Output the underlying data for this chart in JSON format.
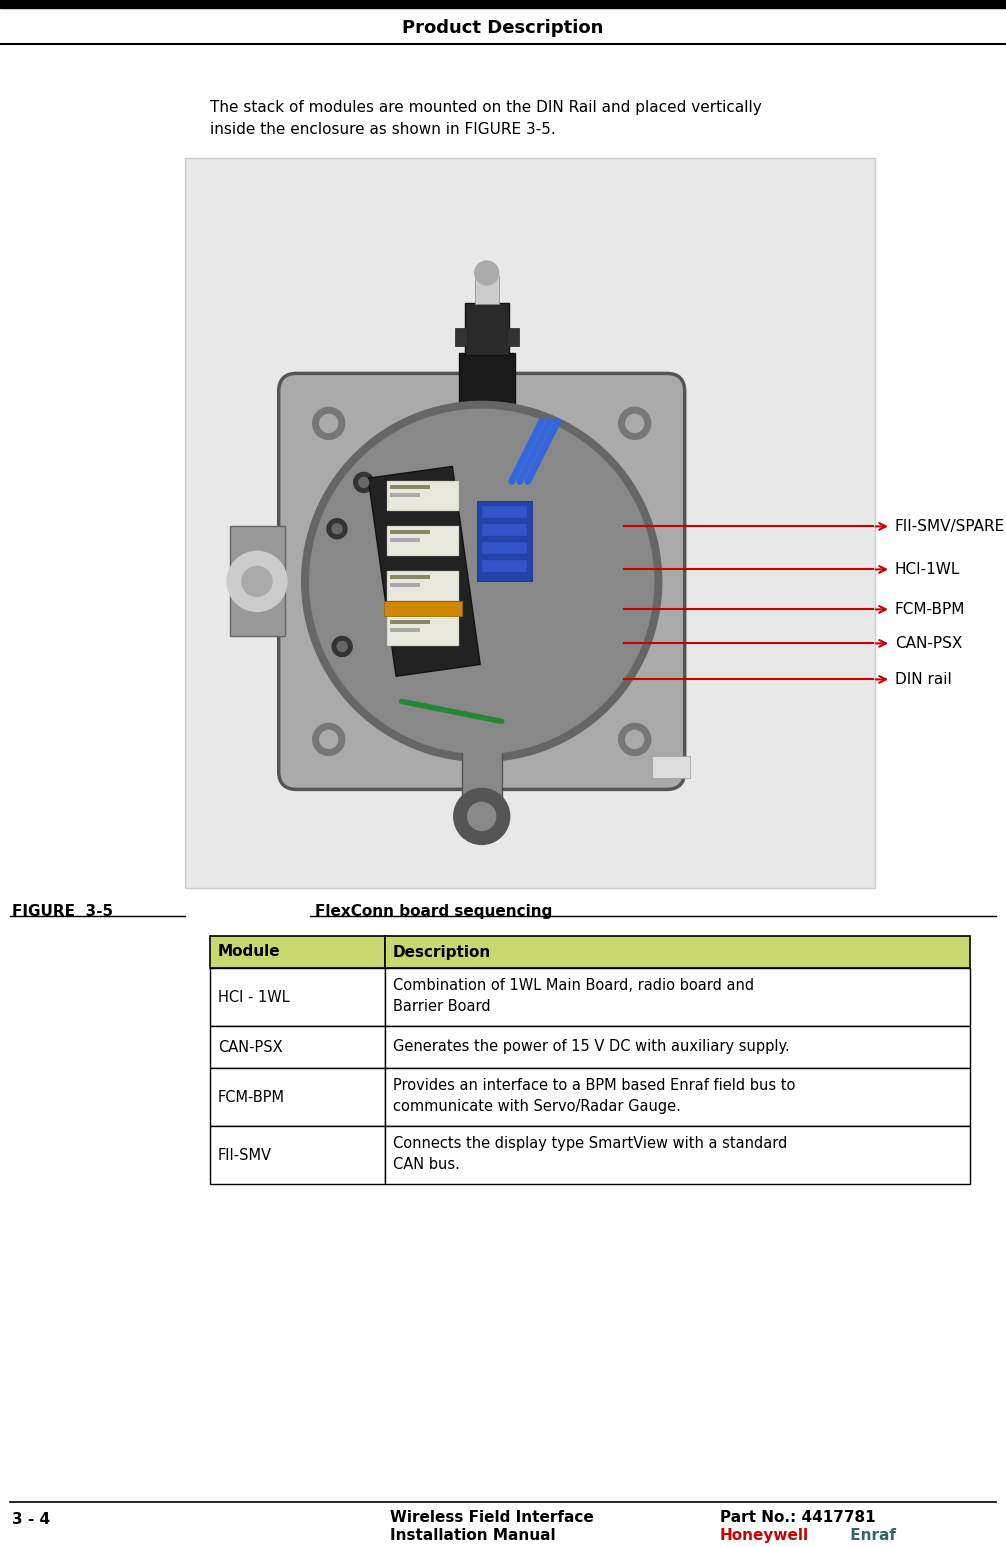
{
  "page_title": "Product Description",
  "bg_color": "#ffffff",
  "header_title": "Product Description",
  "intro_text_line1": "The stack of modules are mounted on the DIN Rail and placed vertically",
  "intro_text_line2": "inside the enclosure as shown in FIGURE 3-5.",
  "figure_caption_label": "FIGURE  3-5",
  "figure_caption_text": "FlexConn board sequencing",
  "table_header": [
    "Module",
    "Description"
  ],
  "table_header_bg": "#c8d86e",
  "table_rows": [
    [
      "HCI - 1WL",
      "Combination of 1WL Main Board, radio board and\nBarrier Board"
    ],
    [
      "CAN-PSX",
      "Generates the power of 15 V DC with auxiliary supply."
    ],
    [
      "FCM-BPM",
      "Provides an interface to a BPM based Enraf field bus to\ncommunicate with Servo/Radar Gauge."
    ],
    [
      "FII-SMV",
      "Connects the display type SmartView with a standard\nCAN bus."
    ]
  ],
  "table_border_color": "#000000",
  "footer_left_line1": "Wireless Field Interface",
  "footer_left_line2": "Installation Manual",
  "footer_right_line1": "Part No.: 4417781",
  "footer_right_line2_part1": "Honeywell",
  "footer_right_line2_part2": " Enraf",
  "footer_honeywell_color": "#cc0000",
  "footer_enraf_color": "#336666",
  "page_number": "3 - 4",
  "image_labels": [
    "FII-SMV/SPARE",
    "HCI-1WL",
    "FCM-BPM",
    "CAN-PSX",
    "DIN rail"
  ],
  "arrow_color": "#cc0000",
  "figsize": [
    10.06,
    15.47
  ],
  "dpi": 100
}
